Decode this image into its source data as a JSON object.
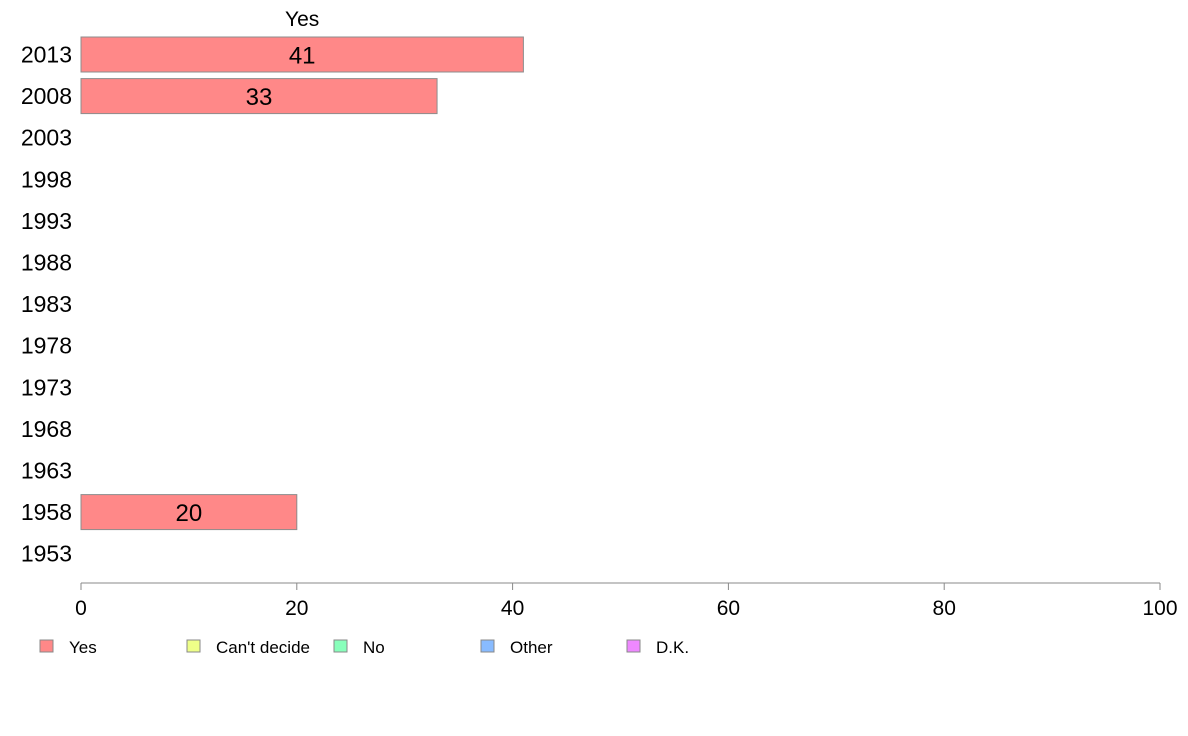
{
  "chart_data": {
    "type": "bar",
    "orientation": "horizontal",
    "stacked": true,
    "column_title": "Yes",
    "categories": [
      "2013",
      "2008",
      "2003",
      "1998",
      "1993",
      "1988",
      "1983",
      "1978",
      "1973",
      "1968",
      "1963",
      "1958",
      "1953"
    ],
    "series": [
      {
        "name": "Yes",
        "color": "#ff8888",
        "values": [
          41,
          33,
          null,
          null,
          null,
          null,
          null,
          null,
          null,
          null,
          null,
          20,
          null
        ]
      },
      {
        "name": "Can't decide",
        "color": "#eeff88",
        "values": [
          null,
          null,
          null,
          null,
          null,
          null,
          null,
          null,
          null,
          null,
          null,
          null,
          null
        ]
      },
      {
        "name": "No",
        "color": "#88ffbb",
        "values": [
          null,
          null,
          null,
          null,
          null,
          null,
          null,
          null,
          null,
          null,
          null,
          null,
          null
        ]
      },
      {
        "name": "Other",
        "color": "#88bbff",
        "values": [
          null,
          null,
          null,
          null,
          null,
          null,
          null,
          null,
          null,
          null,
          null,
          null,
          null
        ]
      },
      {
        "name": "D.K.",
        "color": "#ee88ff",
        "values": [
          null,
          null,
          null,
          null,
          null,
          null,
          null,
          null,
          null,
          null,
          null,
          null,
          null
        ]
      }
    ],
    "xlim": [
      0,
      100
    ],
    "xticks": [
      0,
      20,
      40,
      60,
      80,
      100
    ],
    "grid": false,
    "legend_position": "bottom"
  }
}
